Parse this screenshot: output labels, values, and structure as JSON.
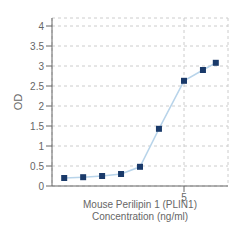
{
  "chart_data": {
    "type": "line",
    "x": [
      0.0625,
      0.125,
      0.25,
      0.5,
      1,
      2,
      5,
      10,
      16
    ],
    "values": [
      0.2,
      0.22,
      0.25,
      0.3,
      0.48,
      1.43,
      2.63,
      2.9,
      3.08
    ],
    "xlabel": "Mouse Perilipin 1 (PLIN1)\nConcentration (ng/ml)",
    "ylabel": "OD",
    "log": "x",
    "xlim": [
      0.04,
      25
    ],
    "xticks": [
      5
    ],
    "ylim": [
      0,
      4.2
    ],
    "yticks": [
      0,
      0.5,
      1,
      1.5,
      2,
      2.5,
      3,
      3.5,
      4
    ],
    "grid": true,
    "color": "#b8d4ea",
    "colors": [
      "#1a3a6a",
      "#1a3a6a",
      "#1a3a6a",
      "#1a3a6a",
      "#1a3a6a",
      "#1a3a6a",
      "#1a3a6a",
      "#1a3a6a",
      "#1a3a6a"
    ],
    "marker": "square"
  }
}
